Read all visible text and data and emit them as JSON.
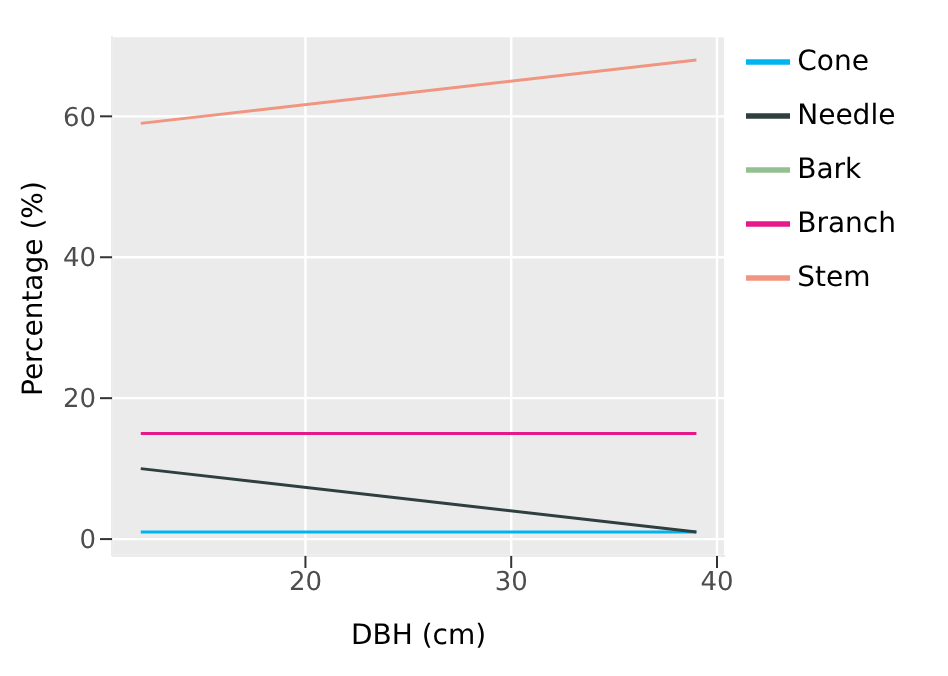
{
  "chart_data": {
    "type": "line",
    "xlabel": "DBH (cm)",
    "ylabel": "Percentage (%)",
    "x": [
      12,
      39
    ],
    "series": [
      {
        "name": "Cone",
        "color": "#00b4ef",
        "values": [
          1,
          1
        ]
      },
      {
        "name": "Needle",
        "color": "#2f3f3f",
        "values": [
          10,
          1
        ]
      },
      {
        "name": "Bark",
        "color": "#93bf93",
        "values": [
          null,
          null
        ]
      },
      {
        "name": "Branch",
        "color": "#e5198a",
        "values": [
          15,
          15
        ]
      },
      {
        "name": "Stem",
        "color": "#ef9580",
        "values": [
          59,
          68
        ]
      }
    ],
    "xlim": [
      10.6,
      40.4
    ],
    "xticks": [
      20,
      30,
      40
    ],
    "ylim": [
      -2.4,
      71.4
    ],
    "yticks": [
      0,
      20,
      40,
      60
    ],
    "grid": true,
    "legend": "right",
    "marker": "none",
    "line_style": "solid"
  }
}
